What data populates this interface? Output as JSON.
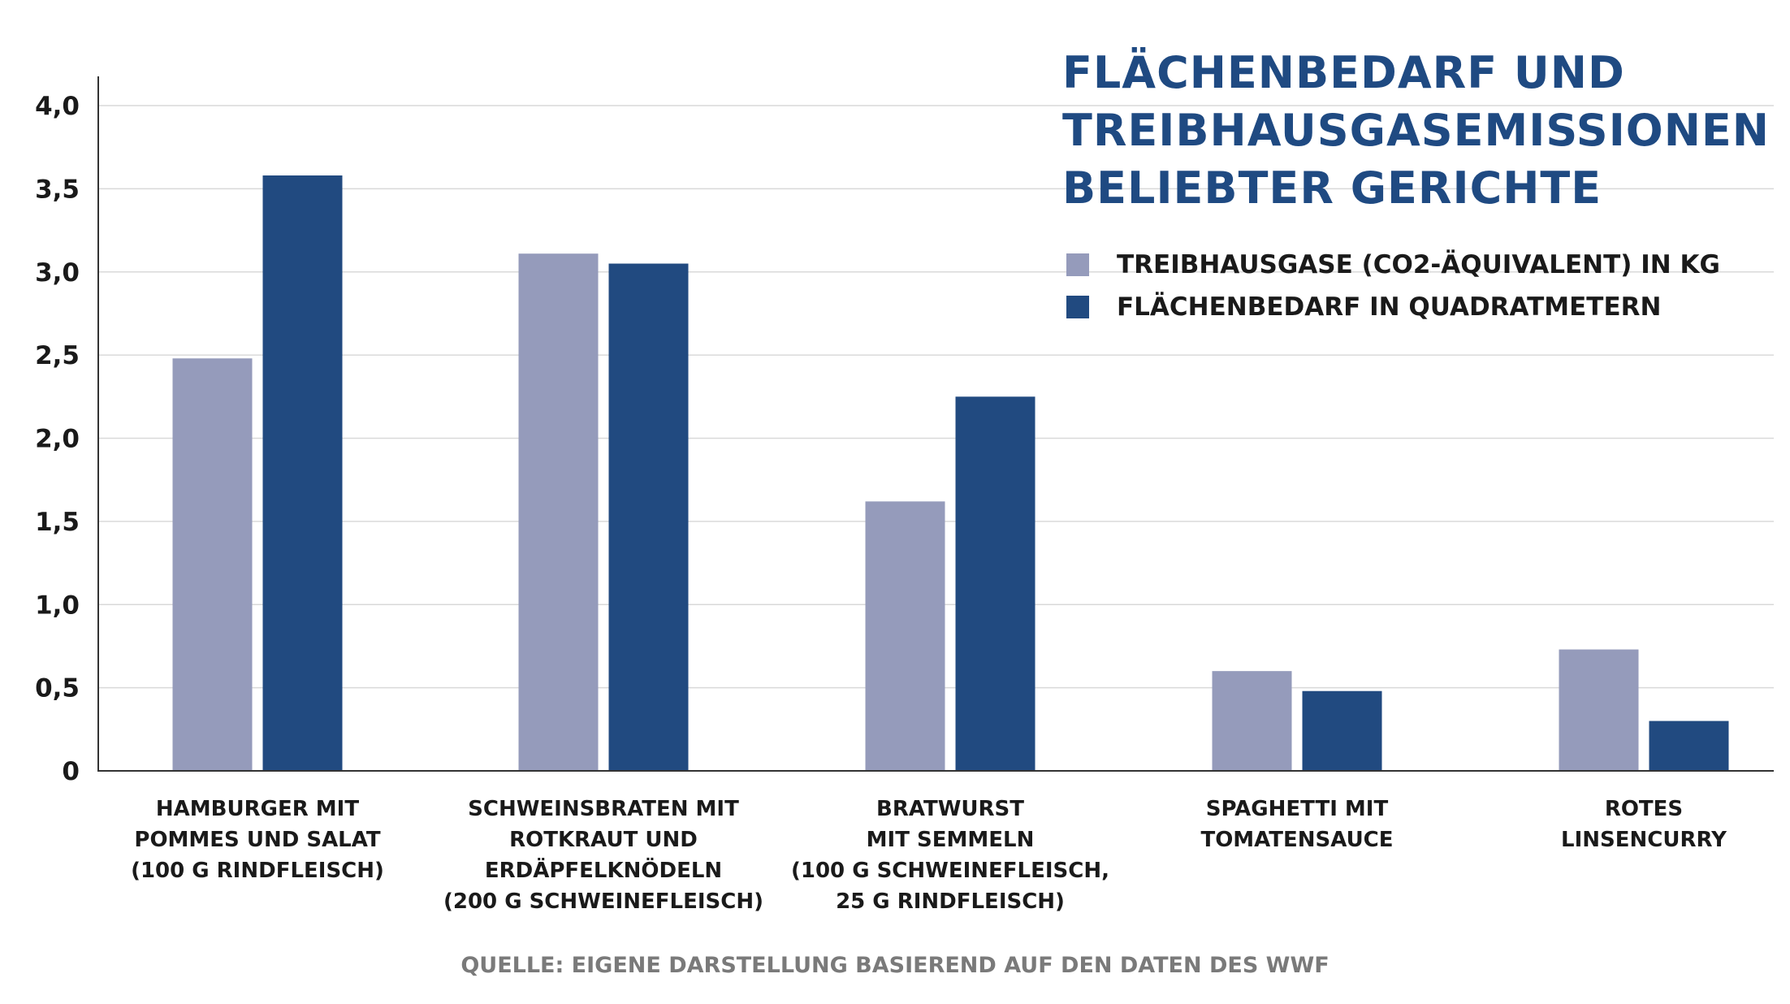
{
  "chart_data": {
    "type": "bar",
    "title": [
      "FLÄCHENBEDARF UND",
      "TREIBHAUSGASEMISSIONEN",
      "BELIEBTER GERICHTE"
    ],
    "categories": [
      [
        "HAMBURGER MIT",
        "POMMES UND SALAT",
        "(100 G RINDFLEISCH)"
      ],
      [
        "SCHWEINSBRATEN MIT",
        "ROTKRAUT UND",
        "ERDÄPFELKNÖDELN",
        "(200 G SCHWEINEFLEISCH)"
      ],
      [
        "BRATWURST",
        "MIT SEMMELN",
        "(100 G SCHWEINEFLEISCH,",
        "25 G RINDFLEISCH)"
      ],
      [
        "SPAGHETTI MIT",
        "TOMATENSAUCE"
      ],
      [
        "ROTES",
        "LINSENCURRY"
      ]
    ],
    "series": [
      {
        "name": "TREIBHAUSGASE (CO2-ÄQUIVALENT) IN KG",
        "color": "#959bbb",
        "values": [
          2.48,
          3.11,
          1.62,
          0.6,
          0.73
        ]
      },
      {
        "name": "FLÄCHENBEDARF IN QUADRATMETERN",
        "color": "#214a80",
        "values": [
          3.58,
          3.05,
          2.25,
          0.48,
          0.3
        ]
      }
    ],
    "yticks": [
      "0",
      "0,5",
      "1,0",
      "1,5",
      "2,0",
      "2,5",
      "3,0",
      "3,5",
      "4,0"
    ],
    "ylim": [
      0,
      4.0
    ],
    "grid": true,
    "legend_position": "top-right"
  },
  "source": "QUELLE: EIGENE DARSTELLUNG BASIEREND AUF DEN DATEN DES WWF"
}
